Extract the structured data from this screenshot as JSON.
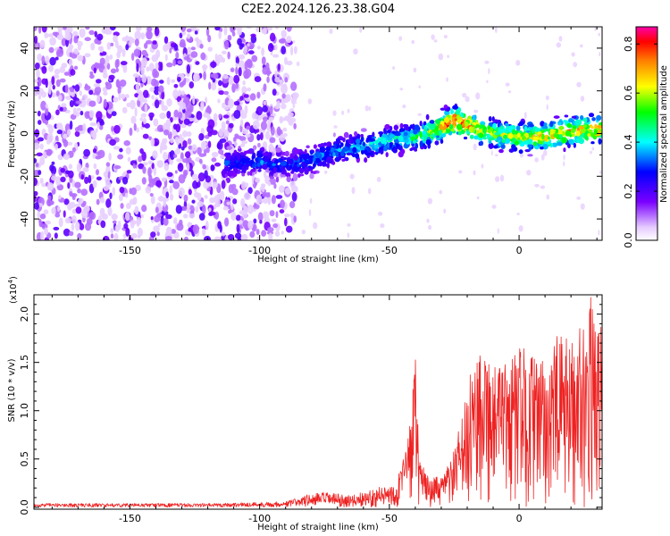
{
  "title": "C2E2.2024.126.23.38.G04",
  "colors": {
    "snr_line": "#ee2222",
    "colormap": [
      "#ffffff",
      "#e6ccff",
      "#7a00ff",
      "#0000ff",
      "#00ffff",
      "#00ff00",
      "#ffff00",
      "#ff8000",
      "#ff0000",
      "#ff00aa"
    ]
  },
  "chart_data": [
    {
      "type": "heatmap",
      "name": "spectrogram",
      "xlabel": "Height of straight line (km)",
      "ylabel": "Frequency (Hz)",
      "xlim": [
        -187,
        32
      ],
      "ylim": [
        -50,
        50
      ],
      "xticks": [
        -150,
        -100,
        -50,
        0
      ],
      "xtick_labels": [
        "-150",
        "-100",
        "-50",
        "0"
      ],
      "yticks": [
        -40,
        -20,
        0,
        20,
        40
      ],
      "ytick_labels": [
        "-40",
        "-20",
        "0",
        "20",
        "40"
      ],
      "colorbar": {
        "label": "Normalized spectral amplitude",
        "range": [
          0,
          0.87
        ],
        "ticks": [
          0.0,
          0.2,
          0.4,
          0.6,
          0.8
        ],
        "tick_labels": [
          "0.0",
          "0.2",
          "0.4",
          "0.6",
          "0.8"
        ]
      },
      "ridge": {
        "x": [
          -112,
          -100,
          -90,
          -80,
          -70,
          -60,
          -50,
          -40,
          -30,
          -25,
          -20,
          -10,
          0,
          10,
          20,
          30
        ],
        "y": [
          -14,
          -13,
          -15,
          -12,
          -8,
          -6,
          -3,
          -2,
          3,
          6,
          4,
          0,
          -2,
          -1,
          1,
          2
        ]
      },
      "ridge_peak_amplitude": [
        0.32,
        0.35,
        0.33,
        0.36,
        0.38,
        0.42,
        0.45,
        0.48,
        0.7,
        0.85,
        0.78,
        0.6,
        0.65,
        0.7,
        0.72,
        0.75
      ],
      "noise_region_xlim": [
        -187,
        -90
      ]
    },
    {
      "type": "line",
      "name": "snr",
      "xlabel": "Height of straight line (km)",
      "ylabel": "SNR (10 * v/v)",
      "y_multiplier": "(x10",
      "y_multiplier_exp": "4",
      "y_multiplier_close": ")",
      "xlim": [
        -187,
        32
      ],
      "ylim": [
        -0.02,
        2.2
      ],
      "xticks": [
        -150,
        -100,
        -50,
        0
      ],
      "xtick_labels": [
        "-150",
        "-100",
        "-50",
        "0"
      ],
      "yticks": [
        0.0,
        0.5,
        1.0,
        1.5,
        2.0
      ],
      "ytick_labels": [
        "0.0",
        "0.5",
        "1.0",
        "1.5",
        "2.0"
      ],
      "envelope": {
        "x": [
          -187,
          -120,
          -90,
          -82,
          -75,
          -65,
          -55,
          -48,
          -44,
          -41,
          -40,
          -38,
          -36,
          -30,
          -25,
          -20,
          -15,
          -10,
          -5,
          0,
          5,
          10,
          15,
          20,
          25,
          28,
          32
        ],
        "y": [
          0.04,
          0.04,
          0.06,
          0.13,
          0.16,
          0.12,
          0.2,
          0.25,
          0.55,
          1.2,
          1.6,
          0.5,
          0.35,
          0.3,
          0.6,
          1.2,
          1.95,
          1.5,
          1.5,
          1.7,
          1.6,
          1.5,
          1.8,
          1.75,
          2.0,
          2.2,
          1.9
        ]
      }
    }
  ]
}
